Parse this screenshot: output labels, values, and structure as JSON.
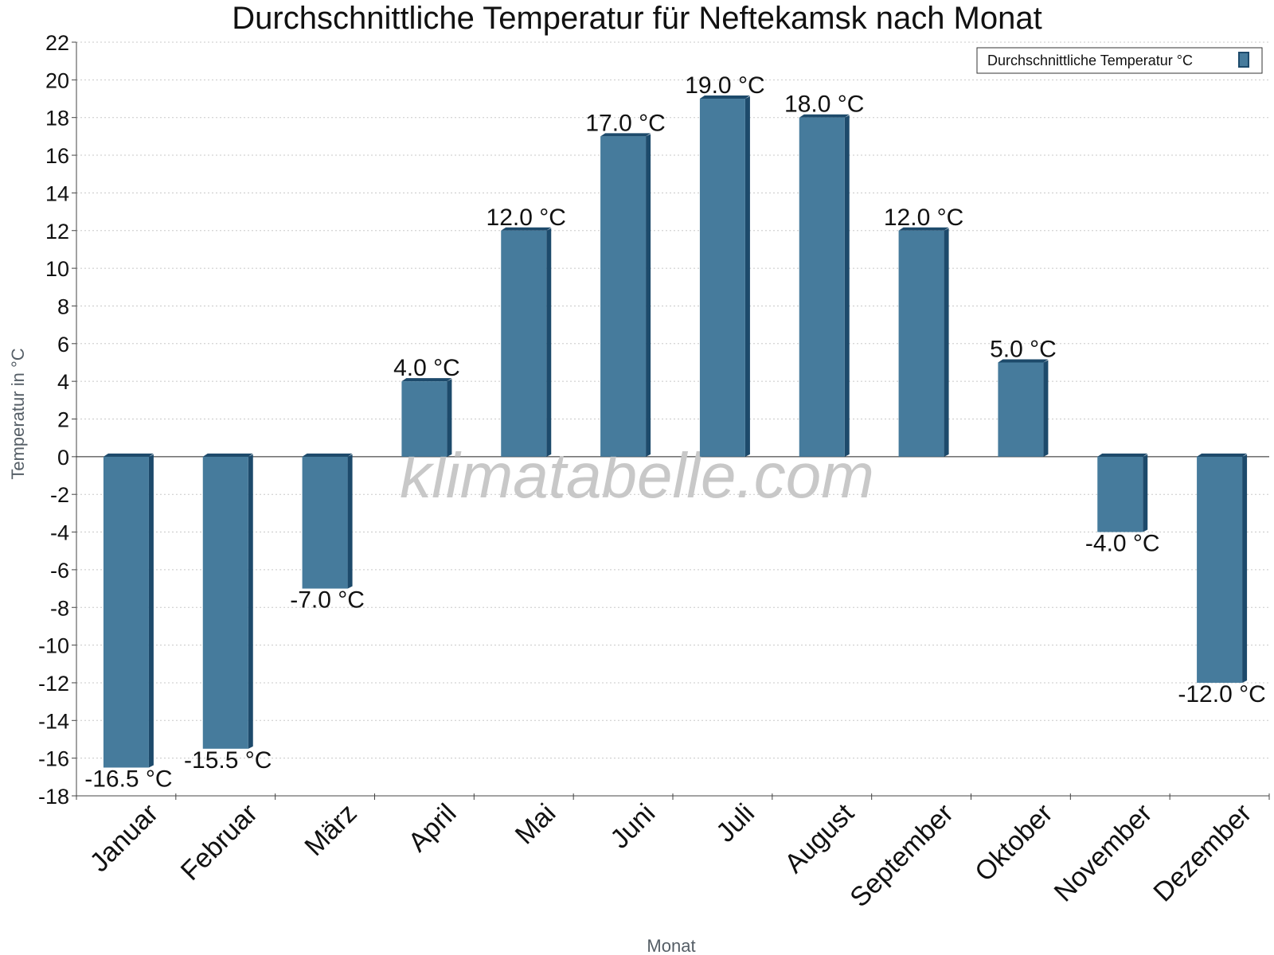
{
  "chart_data": {
    "type": "bar",
    "title": "Durchschnittliche Temperatur für Neftekamsk nach Monat",
    "xlabel": "Monat",
    "ylabel": "Temperatur in °C",
    "ylim": [
      -18,
      22
    ],
    "ytick_step": 2,
    "grid": true,
    "legend_position": "top-right",
    "categories": [
      "Januar",
      "Februar",
      "März",
      "April",
      "Mai",
      "Juni",
      "Juli",
      "August",
      "September",
      "Oktober",
      "November",
      "Dezember"
    ],
    "series": [
      {
        "name": "Durchschnittliche Temperatur °C",
        "values": [
          -16.5,
          -15.5,
          -7.0,
          4.0,
          12.0,
          17.0,
          19.0,
          18.0,
          12.0,
          5.0,
          -4.0,
          -12.0
        ],
        "labels": [
          "-16.5 °C",
          "-15.5 °C",
          "-7.0 °C",
          "4.0 °C",
          "12.0 °C",
          "17.0 °C",
          "19.0 °C",
          "18.0 °C",
          "12.0 °C",
          "5.0 °C",
          "-4.0 °C",
          "-12.0 °C"
        ]
      }
    ],
    "watermark": "klimatabelle.com",
    "colors": {
      "bar": "#467b9c",
      "bar_side": "#1d4a6b",
      "grid": "#c8c8c8",
      "axis": "#444444"
    }
  }
}
